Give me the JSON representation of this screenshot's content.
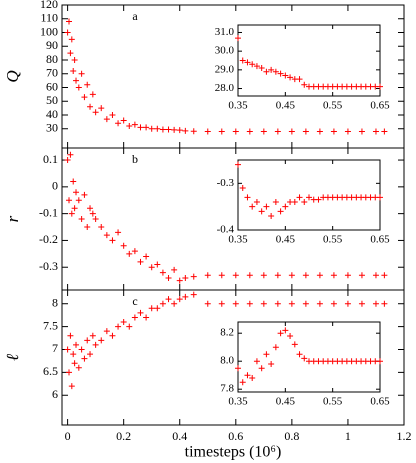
{
  "chart_data": [
    {
      "type": "scatter",
      "label": "a",
      "ylabel": "Q",
      "color": "#ff0000",
      "xlim": [
        -0.02,
        1.2
      ],
      "xticks": [
        0,
        0.2,
        0.4,
        0.6,
        0.8,
        1,
        1.2
      ],
      "ylim": [
        16,
        120
      ],
      "yticks": [
        30,
        40,
        50,
        60,
        70,
        80,
        90,
        100,
        110,
        120
      ],
      "x": [
        0,
        0.005,
        0.01,
        0.015,
        0.02,
        0.025,
        0.03,
        0.04,
        0.05,
        0.06,
        0.07,
        0.08,
        0.09,
        0.1,
        0.12,
        0.14,
        0.16,
        0.18,
        0.2,
        0.22,
        0.24,
        0.26,
        0.28,
        0.3,
        0.32,
        0.34,
        0.36,
        0.38,
        0.4,
        0.42,
        0.45,
        0.5,
        0.55,
        0.6,
        0.65,
        0.7,
        0.75,
        0.8,
        0.85,
        0.9,
        0.95,
        1.0,
        1.05,
        1.1,
        1.13
      ],
      "values": [
        100,
        108,
        85,
        95,
        72,
        80,
        65,
        60,
        70,
        53,
        62,
        46,
        55,
        42,
        45,
        37,
        40,
        34,
        36,
        32,
        33,
        31,
        31,
        30,
        30,
        29.5,
        29.5,
        29.2,
        29,
        28.5,
        28.2,
        28,
        28,
        28,
        28,
        28,
        28,
        28,
        28,
        28,
        28,
        28,
        28,
        28,
        28
      ],
      "inset": {
        "type": "scatter",
        "color": "#ff0000",
        "xlim": [
          0.35,
          0.65
        ],
        "xticks": [
          0.35,
          0.45,
          0.55,
          0.65
        ],
        "ylim": [
          27.6,
          31.4
        ],
        "yticks": [
          {
            "value": 28,
            "label": "28.0"
          },
          {
            "value": 29,
            "label": "29.0"
          },
          {
            "value": 30,
            "label": "30.0"
          },
          {
            "value": 31,
            "label": "31.0"
          }
        ],
        "x": [
          0.35,
          0.36,
          0.37,
          0.38,
          0.39,
          0.4,
          0.41,
          0.42,
          0.43,
          0.44,
          0.45,
          0.46,
          0.47,
          0.48,
          0.49,
          0.5,
          0.51,
          0.52,
          0.53,
          0.54,
          0.55,
          0.56,
          0.57,
          0.58,
          0.59,
          0.6,
          0.61,
          0.62,
          0.63,
          0.64,
          0.65
        ],
        "values": [
          30.7,
          29.5,
          29.4,
          29.3,
          29.2,
          29.1,
          28.9,
          29.0,
          28.9,
          28.8,
          28.7,
          28.6,
          28.5,
          28.5,
          28.2,
          28.1,
          28.1,
          28.1,
          28.1,
          28.1,
          28.1,
          28.1,
          28.1,
          28.1,
          28.1,
          28.1,
          28.1,
          28.1,
          28.1,
          28.1,
          28.1
        ]
      }
    },
    {
      "type": "scatter",
      "label": "b",
      "ylabel": "r",
      "color": "#ff0000",
      "xlim": [
        -0.02,
        1.2
      ],
      "xticks": [
        0,
        0.2,
        0.4,
        0.6,
        0.8,
        1,
        1.2
      ],
      "ylim": [
        -0.385,
        0.145
      ],
      "yticks": [
        -0.3,
        -0.2,
        -0.1,
        0,
        0.1
      ],
      "x": [
        0,
        0.005,
        0.01,
        0.015,
        0.02,
        0.025,
        0.03,
        0.04,
        0.05,
        0.06,
        0.07,
        0.08,
        0.09,
        0.1,
        0.12,
        0.14,
        0.16,
        0.18,
        0.2,
        0.22,
        0.24,
        0.26,
        0.28,
        0.3,
        0.32,
        0.34,
        0.36,
        0.38,
        0.4,
        0.42,
        0.45,
        0.5,
        0.55,
        0.6,
        0.65,
        0.7,
        0.75,
        0.8,
        0.85,
        0.9,
        0.95,
        1.0,
        1.05,
        1.1,
        1.13
      ],
      "values": [
        0.1,
        -0.05,
        0.12,
        -0.1,
        0.02,
        -0.08,
        -0.02,
        -0.05,
        -0.12,
        -0.03,
        -0.15,
        -0.08,
        -0.1,
        -0.12,
        -0.15,
        -0.18,
        -0.2,
        -0.17,
        -0.22,
        -0.25,
        -0.24,
        -0.28,
        -0.26,
        -0.3,
        -0.29,
        -0.32,
        -0.34,
        -0.31,
        -0.35,
        -0.34,
        -0.335,
        -0.33,
        -0.33,
        -0.33,
        -0.33,
        -0.33,
        -0.33,
        -0.33,
        -0.33,
        -0.33,
        -0.33,
        -0.33,
        -0.33,
        -0.33,
        -0.33
      ],
      "inset": {
        "type": "scatter",
        "color": "#ff0000",
        "xlim": [
          0.35,
          0.65
        ],
        "xticks": [
          0.35,
          0.45,
          0.55,
          0.65
        ],
        "ylim": [
          -0.4,
          -0.25
        ],
        "yticks": [
          -0.4,
          -0.3
        ],
        "x": [
          0.35,
          0.36,
          0.37,
          0.38,
          0.39,
          0.4,
          0.41,
          0.42,
          0.43,
          0.44,
          0.45,
          0.46,
          0.47,
          0.48,
          0.49,
          0.5,
          0.51,
          0.52,
          0.53,
          0.54,
          0.55,
          0.56,
          0.57,
          0.58,
          0.59,
          0.6,
          0.61,
          0.62,
          0.63,
          0.64,
          0.65
        ],
        "values": [
          -0.26,
          -0.31,
          -0.33,
          -0.35,
          -0.34,
          -0.36,
          -0.35,
          -0.37,
          -0.34,
          -0.36,
          -0.35,
          -0.34,
          -0.34,
          -0.33,
          -0.34,
          -0.33,
          -0.335,
          -0.335,
          -0.33,
          -0.33,
          -0.33,
          -0.33,
          -0.33,
          -0.33,
          -0.33,
          -0.33,
          -0.33,
          -0.33,
          -0.33,
          -0.33,
          -0.33
        ]
      }
    },
    {
      "type": "scatter",
      "label": "c",
      "ylabel": "ℓ",
      "xlabel": "timesteps (10⁶)",
      "color": "#ff0000",
      "xlim": [
        -0.02,
        1.2
      ],
      "xticks": [
        0,
        0.2,
        0.4,
        0.6,
        0.8,
        1,
        1.2
      ],
      "ylim": [
        5.35,
        8.3
      ],
      "yticks": [
        6,
        6.5,
        7,
        7.5,
        8
      ],
      "x": [
        0,
        0.005,
        0.01,
        0.015,
        0.02,
        0.025,
        0.03,
        0.04,
        0.05,
        0.06,
        0.07,
        0.08,
        0.09,
        0.1,
        0.12,
        0.14,
        0.16,
        0.18,
        0.2,
        0.22,
        0.24,
        0.26,
        0.28,
        0.3,
        0.32,
        0.34,
        0.36,
        0.38,
        0.4,
        0.42,
        0.45,
        0.5,
        0.55,
        0.6,
        0.65,
        0.7,
        0.75,
        0.8,
        0.85,
        0.9,
        0.95,
        1.0,
        1.05,
        1.1,
        1.13
      ],
      "values": [
        7.0,
        6.5,
        7.3,
        6.2,
        6.9,
        6.7,
        7.1,
        6.6,
        7.0,
        6.8,
        7.2,
        6.9,
        7.3,
        7.1,
        7.2,
        7.4,
        7.3,
        7.5,
        7.6,
        7.5,
        7.7,
        7.8,
        7.7,
        7.9,
        7.9,
        8.0,
        8.1,
        8.0,
        8.1,
        8.15,
        8.2,
        8.0,
        8.0,
        8.0,
        8.0,
        8.0,
        8.0,
        8.0,
        8.0,
        8.0,
        8.0,
        8.0,
        8.0,
        8.0,
        8.0
      ],
      "inset": {
        "type": "scatter",
        "color": "#ff0000",
        "xlim": [
          0.35,
          0.65
        ],
        "xticks": [
          0.35,
          0.45,
          0.55,
          0.65
        ],
        "ylim": [
          7.78,
          8.28
        ],
        "yticks": [
          7.8,
          {
            "value": 8,
            "label": "8.0"
          },
          8.2
        ],
        "x": [
          0.35,
          0.36,
          0.37,
          0.38,
          0.39,
          0.4,
          0.41,
          0.42,
          0.43,
          0.44,
          0.45,
          0.46,
          0.47,
          0.48,
          0.49,
          0.5,
          0.51,
          0.52,
          0.53,
          0.54,
          0.55,
          0.56,
          0.57,
          0.58,
          0.59,
          0.6,
          0.61,
          0.62,
          0.63,
          0.64,
          0.65
        ],
        "values": [
          7.95,
          7.85,
          7.9,
          7.88,
          8.0,
          7.95,
          8.05,
          7.98,
          8.1,
          8.2,
          8.22,
          8.18,
          8.12,
          8.05,
          8.02,
          8.0,
          8.0,
          8.0,
          8.0,
          8.0,
          8.0,
          8.0,
          8.0,
          8.0,
          8.0,
          8.0,
          8.0,
          8.0,
          8.0,
          8.0,
          8.0
        ]
      }
    }
  ]
}
